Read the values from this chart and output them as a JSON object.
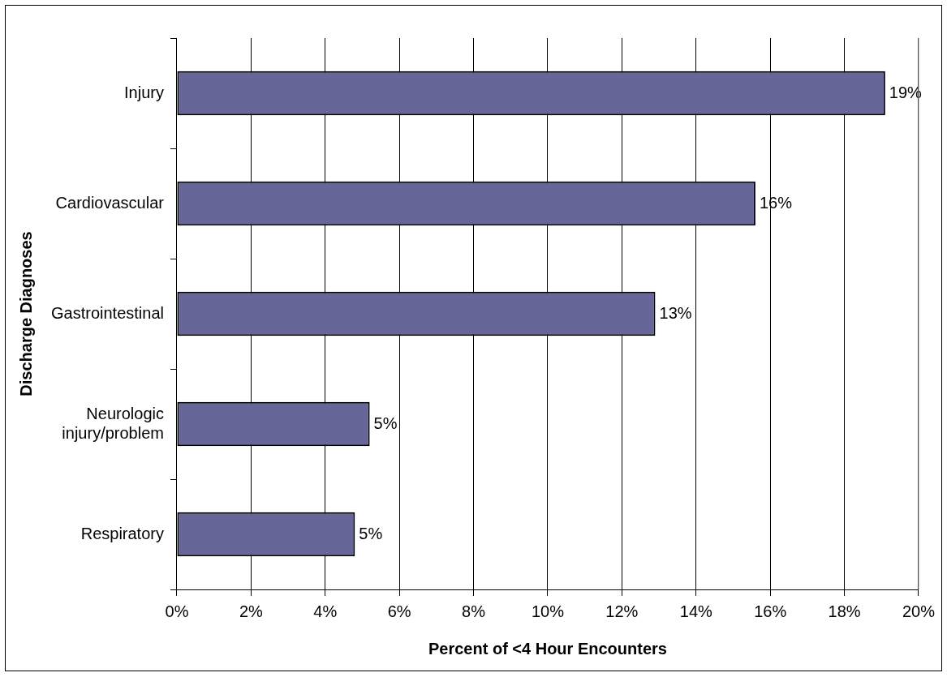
{
  "chart_data": {
    "type": "bar",
    "orientation": "horizontal",
    "xlabel": "Percent of <4 Hour Encounters",
    "ylabel": "Discharge Diagnoses",
    "categories": [
      "Injury",
      "Cardiovascular",
      "Gastrointestinal",
      [
        "Neurologic",
        "injury/problem"
      ],
      "Respiratory"
    ],
    "values": [
      19.1,
      15.6,
      12.9,
      5.2,
      4.8
    ],
    "color": "#666699",
    "value_labels": [
      "19%",
      "16%",
      "13%",
      "5%",
      "5%"
    ],
    "xlim": [
      0,
      20
    ],
    "xticks": [
      {
        "value": 0,
        "label": "0%"
      },
      {
        "value": 2,
        "label": "2%"
      },
      {
        "value": 4,
        "label": "4%"
      },
      {
        "value": 6,
        "label": "6%"
      },
      {
        "value": 8,
        "label": "8%"
      },
      {
        "value": 10,
        "label": "10%"
      },
      {
        "value": 12,
        "label": "12%"
      },
      {
        "value": 14,
        "label": "14%"
      },
      {
        "value": 16,
        "label": "16%"
      },
      {
        "value": 18,
        "label": "18%"
      },
      {
        "value": 20,
        "label": "20%"
      }
    ],
    "grid": "x",
    "legend": false
  }
}
